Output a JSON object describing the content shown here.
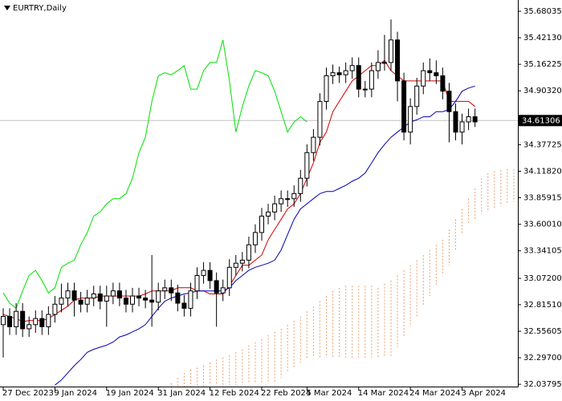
{
  "chart_data": {
    "type": "candlestick",
    "title": "EURTRY,Daily",
    "categories": [
      "27 Dec 2023",
      null,
      null,
      null,
      null,
      null,
      null,
      null,
      "9 Jan 2024",
      null,
      null,
      null,
      null,
      null,
      null,
      null,
      "19 Jan 2024",
      null,
      null,
      null,
      null,
      null,
      null,
      null,
      "31 Jan 2024",
      null,
      null,
      null,
      null,
      null,
      null,
      null,
      "12 Feb 2024",
      null,
      null,
      null,
      null,
      null,
      null,
      null,
      "22 Feb 2024",
      null,
      null,
      null,
      null,
      null,
      null,
      "5 Mar 2024",
      null,
      null,
      null,
      null,
      null,
      null,
      null,
      "14 Mar 2024",
      null,
      null,
      null,
      null,
      null,
      null,
      null,
      "24 Mar 2024",
      null,
      null,
      null,
      null,
      null,
      null,
      null,
      "3 Apr 2024",
      null,
      null,
      null,
      null,
      null,
      null,
      null,
      null
    ],
    "ylim": [
      32.0,
      35.79
    ],
    "yticks": [
      {
        "value": 35.68035,
        "label": "35.68035"
      },
      {
        "value": 35.4213,
        "label": "35.42130"
      },
      {
        "value": 35.16225,
        "label": "35.16225"
      },
      {
        "value": 34.9032,
        "label": "34.90320"
      },
      {
        "value": 34.37725,
        "label": "34.37725"
      },
      {
        "value": 34.1182,
        "label": "34.11820"
      },
      {
        "value": 33.85915,
        "label": "33.85915"
      },
      {
        "value": 33.6001,
        "label": "33.60010"
      },
      {
        "value": 33.34105,
        "label": "33.34105"
      },
      {
        "value": 33.072,
        "label": "33.07200"
      },
      {
        "value": 32.8151,
        "label": "32.81510"
      },
      {
        "value": 32.55605,
        "label": "32.55605"
      },
      {
        "value": 32.297,
        "label": "32.29700"
      },
      {
        "value": 32.03795,
        "label": "32.03795"
      }
    ],
    "last_price": 34.61306,
    "candles": {
      "open": [
        32.62,
        32.7,
        32.6,
        32.75,
        32.58,
        32.62,
        32.68,
        32.6,
        32.72,
        32.82,
        32.88,
        32.95,
        32.86,
        32.82,
        32.88,
        32.92,
        32.85,
        32.9,
        32.95,
        32.88,
        32.82,
        32.9,
        32.88,
        32.86,
        32.84,
        32.95,
        32.98,
        32.93,
        32.83,
        32.78,
        32.95,
        33.1,
        33.15,
        33.05,
        32.93,
        32.98,
        33.18,
        33.22,
        33.25,
        33.4,
        33.52,
        33.68,
        33.72,
        33.8,
        33.85,
        33.85,
        33.9,
        34.05,
        34.3,
        34.45,
        34.8,
        35.05,
        35.08,
        35.06,
        35.1,
        35.15,
        34.92,
        34.92,
        35.1,
        35.18,
        35.18,
        35.4,
        35.0,
        34.5,
        34.75,
        34.95,
        35.1,
        35.08,
        35.05,
        34.9,
        34.7,
        34.5,
        34.6,
        34.65,
        null,
        null,
        null,
        null,
        null,
        null
      ],
      "high": [
        32.78,
        32.78,
        32.83,
        32.83,
        32.7,
        32.76,
        32.76,
        32.8,
        32.9,
        33.02,
        33.03,
        33.03,
        32.94,
        32.96,
        33.0,
        33.0,
        33.0,
        33.03,
        33.03,
        32.96,
        32.98,
        32.98,
        32.96,
        33.3,
        33.03,
        33.06,
        33.06,
        33.01,
        32.91,
        33.03,
        33.18,
        33.23,
        33.23,
        33.13,
        33.06,
        33.26,
        33.3,
        33.33,
        33.48,
        33.6,
        33.76,
        33.8,
        33.88,
        33.93,
        33.93,
        33.98,
        34.13,
        34.38,
        34.53,
        34.88,
        35.13,
        35.16,
        35.14,
        35.18,
        35.23,
        35.23,
        35.0,
        35.18,
        35.3,
        35.45,
        35.6,
        35.48,
        35.08,
        34.83,
        35.03,
        35.18,
        35.22,
        35.2,
        35.13,
        34.98,
        34.78,
        34.68,
        34.73,
        34.73,
        null,
        null,
        null,
        null,
        null,
        null
      ],
      "low": [
        32.3,
        32.52,
        32.52,
        32.5,
        32.5,
        32.54,
        32.52,
        32.52,
        32.64,
        32.74,
        32.8,
        32.7,
        32.74,
        32.74,
        32.8,
        32.77,
        32.6,
        32.82,
        32.8,
        32.74,
        32.74,
        32.8,
        32.78,
        32.6,
        32.76,
        32.87,
        32.85,
        32.75,
        32.7,
        32.7,
        32.87,
        33.02,
        32.97,
        32.6,
        32.85,
        32.9,
        33.1,
        33.14,
        33.17,
        33.32,
        33.44,
        33.6,
        33.64,
        33.72,
        33.77,
        33.77,
        33.82,
        33.97,
        34.22,
        34.37,
        34.72,
        34.97,
        34.98,
        34.98,
        35.02,
        34.84,
        34.84,
        34.84,
        35.02,
        35.1,
        35.1,
        34.8,
        34.42,
        34.38,
        34.67,
        34.87,
        35.0,
        34.97,
        34.82,
        34.4,
        34.42,
        34.38,
        34.52,
        34.55,
        null,
        null,
        null,
        null,
        null,
        null
      ],
      "close": [
        32.7,
        32.6,
        32.75,
        32.58,
        32.62,
        32.68,
        32.6,
        32.72,
        32.82,
        32.88,
        32.95,
        32.86,
        32.82,
        32.88,
        32.92,
        32.85,
        32.9,
        32.95,
        32.88,
        32.82,
        32.9,
        32.88,
        32.86,
        32.84,
        32.95,
        32.98,
        32.93,
        32.83,
        32.78,
        32.95,
        33.1,
        33.15,
        33.05,
        32.93,
        32.98,
        33.18,
        33.22,
        33.25,
        33.4,
        33.52,
        33.68,
        33.72,
        33.8,
        33.85,
        33.85,
        33.9,
        34.05,
        34.3,
        34.45,
        34.8,
        35.05,
        35.08,
        35.06,
        35.1,
        35.15,
        34.92,
        34.92,
        35.1,
        35.18,
        35.18,
        35.4,
        35.0,
        34.5,
        34.75,
        34.95,
        35.1,
        35.08,
        35.05,
        34.9,
        34.7,
        34.5,
        34.6,
        34.65,
        34.6,
        null,
        null,
        null,
        null,
        null,
        null
      ]
    },
    "lines": [
      {
        "color": "#00e000",
        "values": [
          32.93,
          32.83,
          32.78,
          32.95,
          33.1,
          33.15,
          33.05,
          32.93,
          32.98,
          33.18,
          33.22,
          33.25,
          33.4,
          33.52,
          33.68,
          33.72,
          33.8,
          33.85,
          33.85,
          33.9,
          34.05,
          34.3,
          34.45,
          34.8,
          35.05,
          35.08,
          35.06,
          35.1,
          35.15,
          34.92,
          34.92,
          35.1,
          35.18,
          35.18,
          35.4,
          35.0,
          34.5,
          34.75,
          34.95,
          35.1,
          35.08,
          35.05,
          34.9,
          34.7,
          34.5,
          34.6,
          34.65,
          34.6,
          null,
          null,
          null,
          null,
          null,
          null,
          null,
          null,
          null,
          null,
          null,
          null,
          null,
          null,
          null,
          null,
          null,
          null,
          null,
          null,
          null,
          null,
          null,
          null,
          null,
          null,
          null,
          null,
          null,
          null,
          null,
          null
        ]
      },
      {
        "color": "#d00000",
        "values": [
          32.72,
          32.7,
          32.68,
          32.65,
          32.66,
          32.66,
          32.66,
          32.68,
          32.72,
          32.76,
          32.8,
          32.86,
          32.88,
          32.88,
          32.88,
          32.9,
          32.9,
          32.9,
          32.9,
          32.9,
          32.9,
          32.9,
          32.92,
          32.95,
          32.95,
          32.95,
          32.95,
          32.98,
          32.98,
          32.98,
          32.95,
          32.95,
          32.92,
          32.92,
          32.92,
          33.0,
          33.1,
          33.2,
          33.2,
          33.25,
          33.3,
          33.45,
          33.55,
          33.65,
          33.75,
          33.8,
          33.9,
          34.05,
          34.2,
          34.4,
          34.5,
          34.7,
          34.8,
          34.9,
          35.0,
          35.05,
          35.1,
          35.15,
          35.15,
          35.2,
          35.1,
          35.05,
          35.0,
          35.0,
          35.0,
          35.0,
          35.0,
          35.0,
          35.0,
          34.8,
          34.8,
          34.8,
          34.8,
          34.75,
          null,
          null,
          null,
          null,
          null,
          null
        ]
      },
      {
        "color": "#0000b0",
        "values": [
          null,
          null,
          null,
          null,
          null,
          null,
          null,
          null,
          32.03,
          32.08,
          32.15,
          32.22,
          32.28,
          32.35,
          32.38,
          32.4,
          32.42,
          32.45,
          32.5,
          32.52,
          32.55,
          32.58,
          32.62,
          32.7,
          32.78,
          32.85,
          32.88,
          32.9,
          32.92,
          32.93,
          32.95,
          32.95,
          32.95,
          32.95,
          32.95,
          32.98,
          33.05,
          33.1,
          33.15,
          33.18,
          33.2,
          33.22,
          33.25,
          33.35,
          33.5,
          33.65,
          33.75,
          33.8,
          33.85,
          33.9,
          33.92,
          33.92,
          33.95,
          33.98,
          34.02,
          34.05,
          34.1,
          34.2,
          34.3,
          34.38,
          34.45,
          34.5,
          34.55,
          34.6,
          34.62,
          34.65,
          34.65,
          34.7,
          34.7,
          34.72,
          34.8,
          34.9,
          34.93,
          34.95,
          null,
          null,
          null,
          null,
          null,
          null
        ]
      }
    ],
    "cloud": {
      "color": "#e8a070",
      "upper": [
        null,
        null,
        null,
        null,
        null,
        null,
        null,
        null,
        null,
        null,
        null,
        null,
        null,
        null,
        null,
        null,
        null,
        null,
        null,
        null,
        null,
        null,
        null,
        null,
        null,
        null,
        32.05,
        32.1,
        32.15,
        32.18,
        32.2,
        32.22,
        32.25,
        32.28,
        32.3,
        32.32,
        32.35,
        32.38,
        32.42,
        32.45,
        32.48,
        32.52,
        32.55,
        32.58,
        32.62,
        32.66,
        32.7,
        32.75,
        32.8,
        32.85,
        32.9,
        32.95,
        32.98,
        33.0,
        33.0,
        33.0,
        33.0,
        33.0,
        32.98,
        33.02,
        33.05,
        33.1,
        33.15,
        33.2,
        33.25,
        33.3,
        33.35,
        33.4,
        33.45,
        33.55,
        33.65,
        33.75,
        33.85,
        33.95,
        34.05,
        34.1,
        34.12,
        34.13,
        34.14,
        34.14
      ],
      "lower": [
        null,
        null,
        null,
        null,
        null,
        null,
        null,
        null,
        null,
        null,
        null,
        null,
        null,
        null,
        null,
        null,
        null,
        null,
        null,
        null,
        null,
        null,
        null,
        null,
        null,
        null,
        32.0,
        32.0,
        32.0,
        32.0,
        32.02,
        32.02,
        32.03,
        32.03,
        32.03,
        32.03,
        32.03,
        32.03,
        32.05,
        32.05,
        32.05,
        32.05,
        32.05,
        32.1,
        32.15,
        32.2,
        32.25,
        32.28,
        32.3,
        32.3,
        32.3,
        32.3,
        32.3,
        32.3,
        32.3,
        32.3,
        32.3,
        32.3,
        32.3,
        32.3,
        32.3,
        32.4,
        32.5,
        32.6,
        32.7,
        32.8,
        32.9,
        33.0,
        33.1,
        33.2,
        33.35,
        33.5,
        33.6,
        33.65,
        33.7,
        33.72,
        33.75,
        33.78,
        33.8,
        33.82
      ]
    }
  }
}
